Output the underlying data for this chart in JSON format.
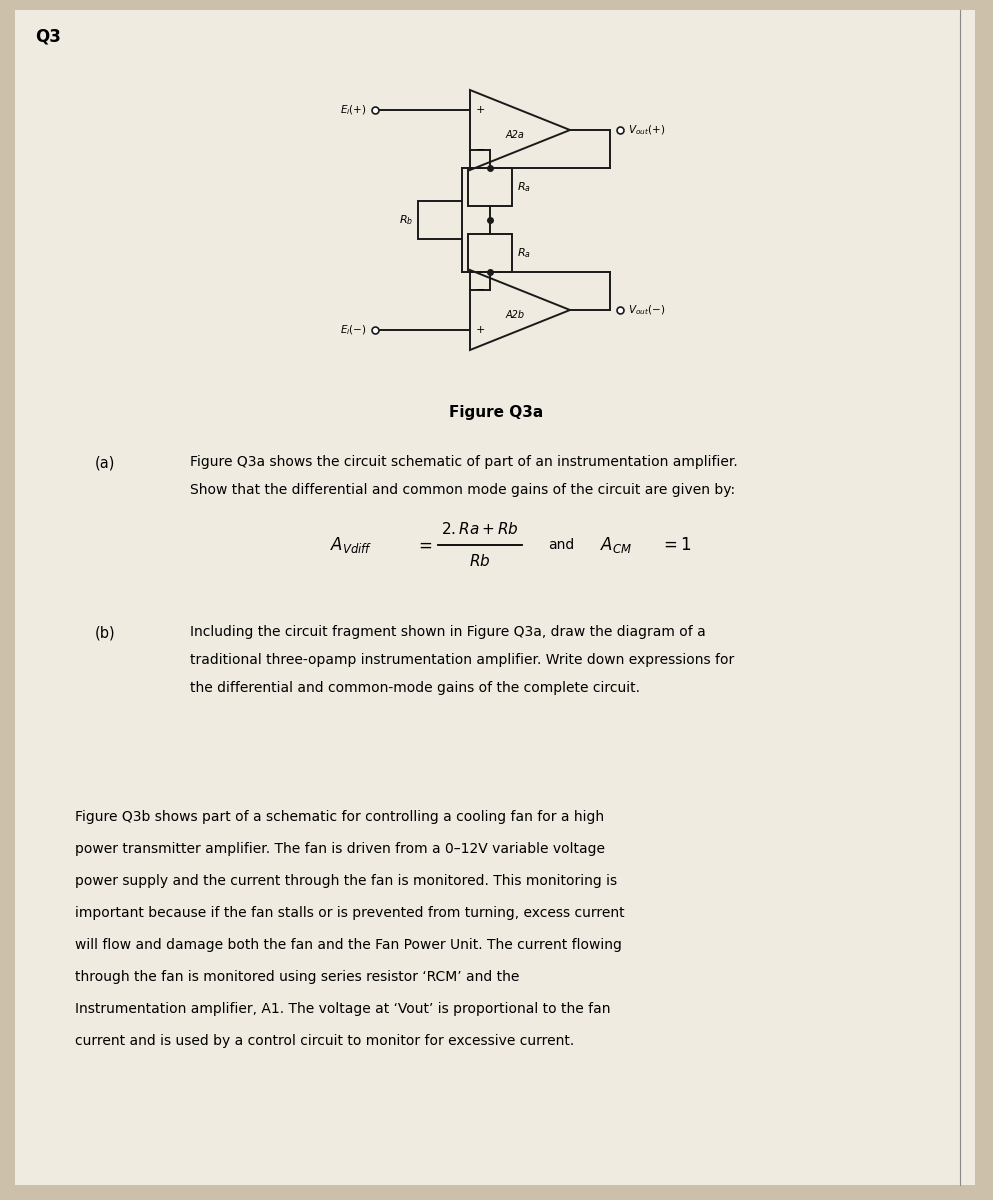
{
  "background_color": "#ccc0aa",
  "page_color": "#f0ebe0",
  "title_q3": "Q3",
  "figure_title": "Figure Q3a",
  "section_a_label": "(a)",
  "section_a_text1": "Figure Q3a shows the circuit schematic of part of an instrumentation amplifier.",
  "section_a_text2": "Show that the differential and common mode gains of the circuit are given by:",
  "section_b_label": "(b)",
  "section_b_text1": "Including the circuit fragment shown in Figure Q3a, draw the diagram of a",
  "section_b_text2": "traditional three-opamp instrumentation amplifier. Write down expressions for",
  "section_b_text3": "the differential and common-mode gains of the complete circuit.",
  "para_text": [
    "Figure Q3b shows part of a schematic for controlling a cooling fan for a high",
    "power transmitter amplifier. The fan is driven from a 0–12V variable voltage",
    "power supply and the current through the fan is monitored. This monitoring is",
    "important because if the fan stalls or is prevented from turning, excess current",
    "will flow and damage both the fan and the Fan Power Unit. The current flowing",
    "through the fan is monitored using series resistor ‘RCM’ and the",
    "Instrumentation amplifier, A1. The voltage at ‘Vout’ is proportional to the fan",
    "current and is used by a control circuit to monitor for excessive current."
  ],
  "line_color": "#1a1a1a"
}
